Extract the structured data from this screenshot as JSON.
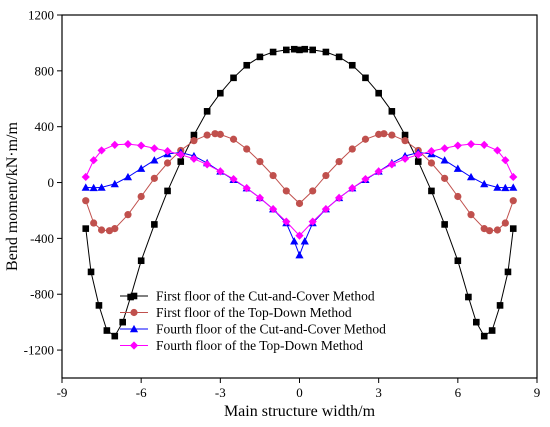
{
  "chart_data": {
    "type": "line",
    "xlabel": "Main structure width/m",
    "ylabel": "Bend moment/kN·m/m",
    "xlim": [
      -9,
      9
    ],
    "ylim": [
      -1400,
      1200
    ],
    "xticks": [
      "-9",
      "-6",
      "-3",
      "0",
      "3",
      "6",
      "9"
    ],
    "yticks": [
      "-1200",
      "-800",
      "-400",
      "0",
      "400",
      "800",
      "1200"
    ],
    "grid": false,
    "legend_position": "bottom-center",
    "series": [
      {
        "name": "First floor of the Cut-and-Cover Method",
        "color": "#000000",
        "marker": "square",
        "x": [
          -8.1,
          -7.9,
          -7.6,
          -7.3,
          -7.0,
          -6.7,
          -6.4,
          -6.0,
          -5.5,
          -5.0,
          -4.5,
          -4.0,
          -3.5,
          -3.0,
          -2.5,
          -2.0,
          -1.5,
          -1.0,
          -0.5,
          -0.2,
          0,
          0.2,
          0.5,
          1.0,
          1.5,
          2.0,
          2.5,
          3.0,
          3.5,
          4.0,
          4.5,
          5.0,
          5.5,
          6.0,
          6.4,
          6.7,
          7.0,
          7.3,
          7.6,
          7.9,
          8.1
        ],
        "y": [
          -330,
          -640,
          -880,
          -1060,
          -1100,
          -1000,
          -820,
          -560,
          -300,
          -60,
          150,
          340,
          510,
          640,
          750,
          840,
          900,
          935,
          950,
          955,
          950,
          955,
          950,
          935,
          900,
          840,
          750,
          640,
          510,
          340,
          150,
          -60,
          -300,
          -560,
          -820,
          -1000,
          -1100,
          -1060,
          -880,
          -640,
          -330
        ]
      },
      {
        "name": "First floor of the Top-Down Method",
        "color": "#c0504d",
        "marker": "circle",
        "x": [
          -8.1,
          -7.8,
          -7.5,
          -7.2,
          -7.0,
          -6.5,
          -6.0,
          -5.5,
          -5.0,
          -4.5,
          -4.0,
          -3.5,
          -3.2,
          -3.0,
          -2.5,
          -2.0,
          -1.5,
          -1.0,
          -0.5,
          0,
          0.5,
          1.0,
          1.5,
          2.0,
          2.5,
          3.0,
          3.2,
          3.5,
          4.0,
          4.5,
          5.0,
          5.5,
          6.0,
          6.5,
          7.0,
          7.2,
          7.5,
          7.8,
          8.1
        ],
        "y": [
          -130,
          -290,
          -340,
          -345,
          -330,
          -230,
          -100,
          30,
          140,
          230,
          300,
          340,
          350,
          345,
          310,
          240,
          150,
          50,
          -60,
          -150,
          -60,
          50,
          150,
          240,
          310,
          345,
          350,
          340,
          300,
          230,
          140,
          30,
          -100,
          -230,
          -330,
          -345,
          -340,
          -290,
          -130
        ]
      },
      {
        "name": "Fourth floor of the Cut-and-Cover Method",
        "color": "#0000ff",
        "marker": "triangle",
        "x": [
          -8.1,
          -7.8,
          -7.5,
          -7.0,
          -6.5,
          -6.0,
          -5.5,
          -5.0,
          -4.5,
          -4.0,
          -3.5,
          -3.0,
          -2.5,
          -2.0,
          -1.5,
          -1.0,
          -0.5,
          -0.2,
          0,
          0.2,
          0.5,
          1.0,
          1.5,
          2.0,
          2.5,
          3.0,
          3.5,
          4.0,
          4.5,
          5.0,
          5.5,
          6.0,
          6.5,
          7.0,
          7.5,
          7.8,
          8.1
        ],
        "y": [
          -35,
          -38,
          -35,
          -10,
          40,
          100,
          160,
          205,
          215,
          190,
          140,
          80,
          20,
          -40,
          -110,
          -190,
          -290,
          -420,
          -520,
          -420,
          -290,
          -190,
          -110,
          -40,
          20,
          80,
          140,
          190,
          215,
          205,
          160,
          100,
          40,
          -10,
          -35,
          -38,
          -35
        ]
      },
      {
        "name": "Fourth floor of the Top-Down Method",
        "color": "#ff00ff",
        "marker": "diamond",
        "x": [
          -8.1,
          -7.8,
          -7.5,
          -7.0,
          -6.5,
          -6.0,
          -5.5,
          -5.0,
          -4.5,
          -4.0,
          -3.5,
          -3.0,
          -2.5,
          -2.0,
          -1.5,
          -1.0,
          -0.5,
          0,
          0.5,
          1.0,
          1.5,
          2.0,
          2.5,
          3.0,
          3.5,
          4.0,
          4.5,
          5.0,
          5.5,
          6.0,
          6.5,
          7.0,
          7.5,
          7.8,
          8.1
        ],
        "y": [
          40,
          160,
          230,
          270,
          275,
          265,
          245,
          225,
          200,
          170,
          130,
          80,
          25,
          -40,
          -110,
          -190,
          -280,
          -380,
          -280,
          -190,
          -110,
          -40,
          25,
          80,
          130,
          170,
          200,
          225,
          245,
          265,
          275,
          270,
          230,
          160,
          40
        ]
      }
    ]
  }
}
